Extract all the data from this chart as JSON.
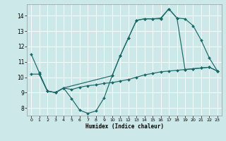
{
  "xlabel": "Humidex (Indice chaleur)",
  "background_color": "#cde8e8",
  "line_color": "#1a6868",
  "xlim": [
    -0.5,
    23.5
  ],
  "ylim": [
    7.5,
    14.75
  ],
  "xticks": [
    0,
    1,
    2,
    3,
    4,
    5,
    6,
    7,
    8,
    9,
    10,
    11,
    12,
    13,
    14,
    15,
    16,
    17,
    18,
    19,
    20,
    21,
    22,
    23
  ],
  "yticks": [
    8,
    9,
    10,
    11,
    12,
    13,
    14
  ],
  "series1_x": [
    0,
    1,
    2,
    3,
    4,
    5,
    6,
    7,
    8,
    9,
    10,
    11,
    12,
    13,
    14,
    15,
    16,
    17,
    18,
    19,
    20,
    21,
    22,
    23
  ],
  "series1_y": [
    11.5,
    10.3,
    9.1,
    9.0,
    9.3,
    8.6,
    7.85,
    7.65,
    7.8,
    8.65,
    10.1,
    11.4,
    12.55,
    13.7,
    13.8,
    13.8,
    13.8,
    14.45,
    13.85,
    13.8,
    13.35,
    12.4,
    11.25,
    10.4
  ],
  "series2_x": [
    0,
    1,
    2,
    3,
    4,
    5,
    6,
    7,
    8,
    9,
    10,
    11,
    12,
    13,
    14,
    15,
    16,
    17,
    18,
    19,
    20,
    21,
    22,
    23
  ],
  "series2_y": [
    10.2,
    10.2,
    9.1,
    9.0,
    9.3,
    9.2,
    9.35,
    9.45,
    9.5,
    9.6,
    9.65,
    9.75,
    9.85,
    10.0,
    10.15,
    10.25,
    10.35,
    10.4,
    10.45,
    10.5,
    10.55,
    10.6,
    10.65,
    10.4
  ],
  "series3_x": [
    1,
    2,
    3,
    4,
    10,
    11,
    12,
    13,
    14,
    15,
    16,
    17,
    18,
    19,
    20,
    21,
    22,
    23
  ],
  "series3_y": [
    10.2,
    9.1,
    9.0,
    9.3,
    10.1,
    11.4,
    12.55,
    13.7,
    13.8,
    13.8,
    13.85,
    14.45,
    13.85,
    10.5,
    10.55,
    10.6,
    10.65,
    10.4
  ]
}
